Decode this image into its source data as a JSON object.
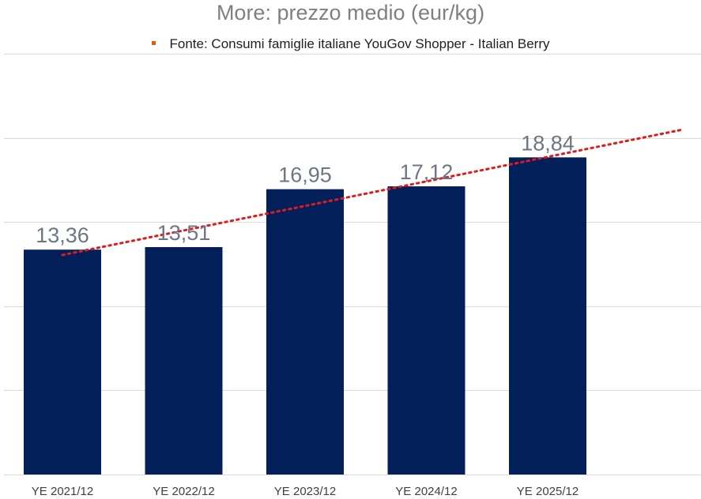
{
  "chart_data": {
    "type": "bar",
    "title": "More: prezzo medio (eur/kg)",
    "categories": [
      "YE 2021/12",
      "YE 2022/12",
      "YE 2023/12",
      "YE 2024/12",
      "YE 2025/12"
    ],
    "values": [
      13.36,
      13.51,
      16.95,
      17.12,
      18.84
    ],
    "data_labels": [
      "13,36",
      "13,51",
      "16,95",
      "17,12",
      "18,84"
    ],
    "legend": {
      "label": "Fonte: Consumi famiglie italiane YouGov Shopper - Italian Berry",
      "position": "top"
    },
    "trendline": {
      "type": "linear",
      "style": "dotted"
    },
    "ylim": [
      0,
      25
    ],
    "grid": true,
    "xlabel": "",
    "ylabel": ""
  },
  "colors": {
    "bar": "#04205b",
    "trendline": "#e01b1b",
    "legend_marker": "#e35b0e",
    "gridline": "#d9d9d9"
  }
}
